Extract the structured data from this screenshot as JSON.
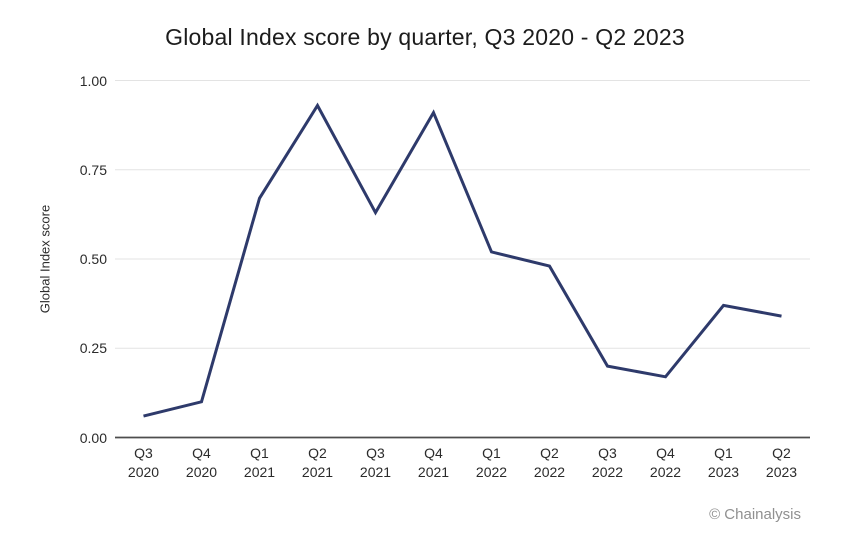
{
  "title": "Global Index score by quarter, Q3 2020 - Q2 2023",
  "y_axis": {
    "title": "Global Index score"
  },
  "attribution": "© Chainalysis",
  "colors": {
    "line": "#2e3a6b",
    "grid": "#e3e3e3",
    "axis": "#4d4d4d",
    "title_text": "#1c1c1c",
    "tick_text": "#2b2b2b",
    "muted_text": "#909090"
  },
  "chart_data": {
    "type": "line",
    "title": "Global Index score by quarter, Q3 2020 - Q2 2023",
    "xlabel": "",
    "ylabel": "Global Index score",
    "series_name": "Global Index score",
    "categories": [
      "Q3 2020",
      "Q4 2020",
      "Q1 2021",
      "Q2 2021",
      "Q3 2021",
      "Q4 2021",
      "Q1 2022",
      "Q2 2022",
      "Q3 2022",
      "Q4 2022",
      "Q1 2023",
      "Q2 2023"
    ],
    "values": [
      0.06,
      0.1,
      0.67,
      0.93,
      0.63,
      0.91,
      0.52,
      0.48,
      0.2,
      0.17,
      0.37,
      0.34
    ],
    "ylim": [
      0,
      1
    ],
    "yticks": [
      0,
      0.25,
      0.5,
      0.75,
      1
    ],
    "ytick_format_decimals": 2,
    "grid": true,
    "legend": false
  }
}
